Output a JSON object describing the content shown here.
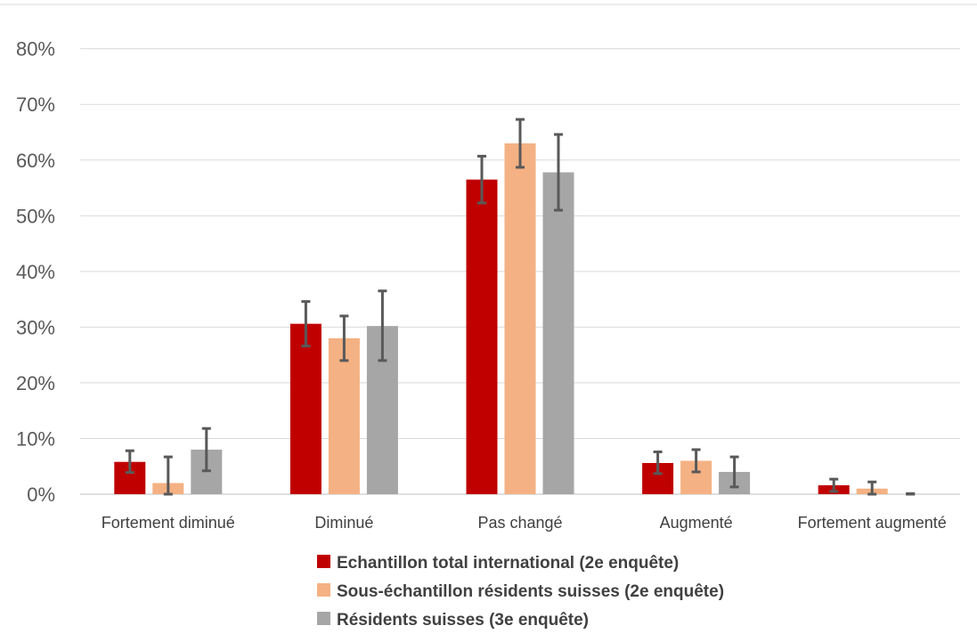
{
  "chart_data": {
    "type": "bar",
    "categories": [
      "Fortement diminué",
      "Diminué",
      "Pas changé",
      "Augmenté",
      "Fortement augmenté"
    ],
    "series": [
      {
        "name": "Echantillon total international (2e enquête)",
        "color": "#c00000",
        "values": [
          5.8,
          30.6,
          56.5,
          5.6,
          1.6
        ],
        "error_low": [
          3.9,
          26.6,
          52.3,
          3.7,
          0.5
        ],
        "error_high": [
          7.8,
          34.6,
          60.7,
          7.6,
          2.7
        ]
      },
      {
        "name": "Sous-échantillon résidents suisses (2e enquête)",
        "color": "#f4b183",
        "values": [
          2.0,
          28.0,
          63.0,
          6.0,
          1.0
        ],
        "error_low": [
          0.0,
          24.0,
          58.7,
          4.0,
          0.0
        ],
        "error_high": [
          6.7,
          32.0,
          67.3,
          8.0,
          2.2
        ]
      },
      {
        "name": "Résidents suisses (3e enquête)",
        "color": "#a6a6a6",
        "values": [
          8.0,
          30.2,
          57.8,
          4.0,
          0.0
        ],
        "error_low": [
          4.2,
          24.0,
          51.0,
          1.3,
          0.0
        ],
        "error_high": [
          11.8,
          36.5,
          64.6,
          6.7,
          0.1
        ]
      }
    ],
    "y_ticks": [
      "0%",
      "10%",
      "20%",
      "30%",
      "40%",
      "50%",
      "60%",
      "70%",
      "80%"
    ],
    "ylim": [
      0,
      80
    ],
    "y_unit": "%",
    "grid": true,
    "legend_position": "bottom"
  }
}
